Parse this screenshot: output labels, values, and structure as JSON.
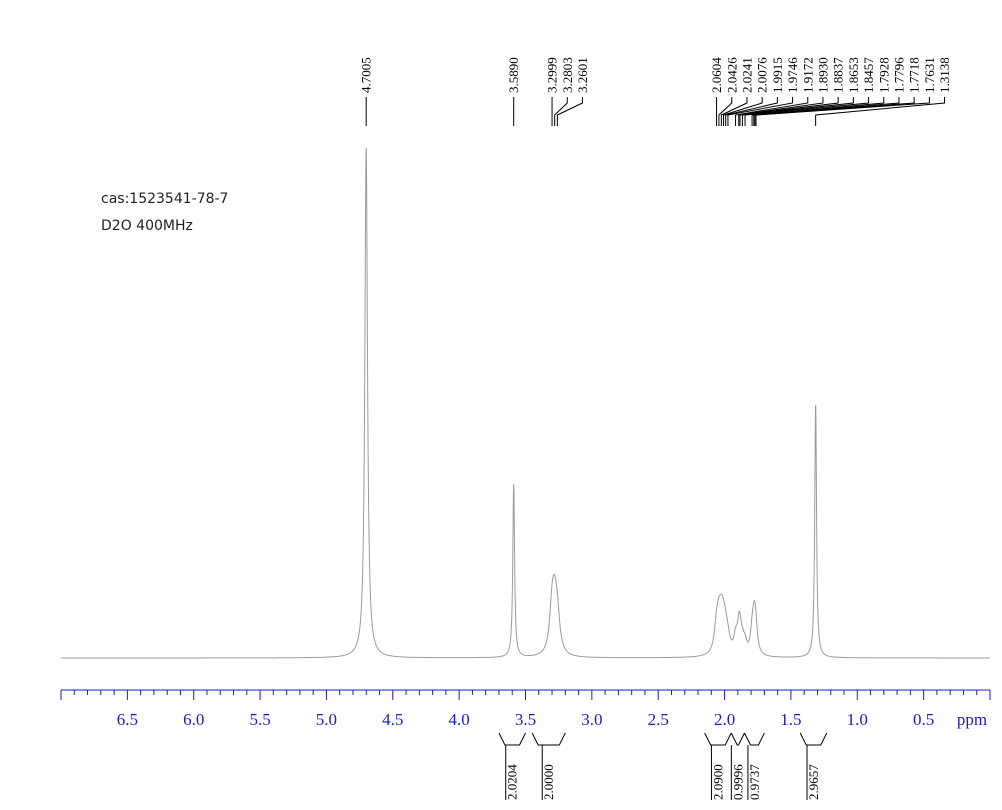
{
  "annotations": {
    "cas": "cas:1523541-78-7",
    "solvent": "D2O 400MHz"
  },
  "chart_data": {
    "type": "line",
    "title": "",
    "xlabel": "ppm",
    "ylabel": "",
    "xlim": [
      7.0,
      0.0
    ],
    "x_reversed": true,
    "x_ticks": [
      "6.5",
      "6.0",
      "5.5",
      "5.0",
      "4.5",
      "4.0",
      "3.5",
      "3.0",
      "2.5",
      "2.0",
      "1.5",
      "1.0",
      "0.5"
    ],
    "peaks": [
      {
        "ppm": 4.7005,
        "label": "4.7005",
        "height": 1.0,
        "width": 0.012
      },
      {
        "ppm": 3.589,
        "label": "3.5890",
        "height": 0.34,
        "width": 0.008
      },
      {
        "ppm": 3.2999,
        "label": "3.2999",
        "height": 0.085,
        "width": 0.022
      },
      {
        "ppm": 3.2803,
        "label": "3.2803",
        "height": 0.08,
        "width": 0.022
      },
      {
        "ppm": 3.2601,
        "label": "3.2601",
        "height": 0.065,
        "width": 0.022
      },
      {
        "ppm": 2.0604,
        "label": "2.0604",
        "height": 0.045,
        "width": 0.02
      },
      {
        "ppm": 2.0426,
        "label": "2.0426",
        "height": 0.05,
        "width": 0.02
      },
      {
        "ppm": 2.0241,
        "label": "2.0241",
        "height": 0.05,
        "width": 0.02
      },
      {
        "ppm": 2.0076,
        "label": "2.0076",
        "height": 0.04,
        "width": 0.02
      },
      {
        "ppm": 1.9915,
        "label": "1.9915",
        "height": 0.03,
        "width": 0.02
      },
      {
        "ppm": 1.9746,
        "label": "1.9746",
        "height": 0.02,
        "width": 0.02
      },
      {
        "ppm": 1.9172,
        "label": "1.9172",
        "height": 0.03,
        "width": 0.015
      },
      {
        "ppm": 1.893,
        "label": "1.8930",
        "height": 0.04,
        "width": 0.015
      },
      {
        "ppm": 1.8837,
        "label": "1.8837",
        "height": 0.035,
        "width": 0.015
      },
      {
        "ppm": 1.8653,
        "label": "1.8653",
        "height": 0.02,
        "width": 0.015
      },
      {
        "ppm": 1.8457,
        "label": "1.8457",
        "height": 0.02,
        "width": 0.015
      },
      {
        "ppm": 1.7928,
        "label": "1.7928",
        "height": 0.035,
        "width": 0.015
      },
      {
        "ppm": 1.7796,
        "label": "1.7796",
        "height": 0.04,
        "width": 0.015
      },
      {
        "ppm": 1.7718,
        "label": "1.7718",
        "height": 0.04,
        "width": 0.015
      },
      {
        "ppm": 1.7631,
        "label": "1.7631",
        "height": 0.03,
        "width": 0.015
      },
      {
        "ppm": 1.3138,
        "label": "1.3138",
        "height": 0.5,
        "width": 0.008
      }
    ],
    "integrals": [
      {
        "from": 3.7,
        "to": 3.5,
        "value": "2.0204"
      },
      {
        "from": 3.45,
        "to": 3.2,
        "value": "2.0000"
      },
      {
        "from": 2.15,
        "to": 1.95,
        "value": "2.0900"
      },
      {
        "from": 1.95,
        "to": 1.85,
        "value": "0.9996"
      },
      {
        "from": 1.85,
        "to": 1.7,
        "value": "0.9737"
      },
      {
        "from": 1.43,
        "to": 1.23,
        "value": "2.9657"
      }
    ]
  }
}
